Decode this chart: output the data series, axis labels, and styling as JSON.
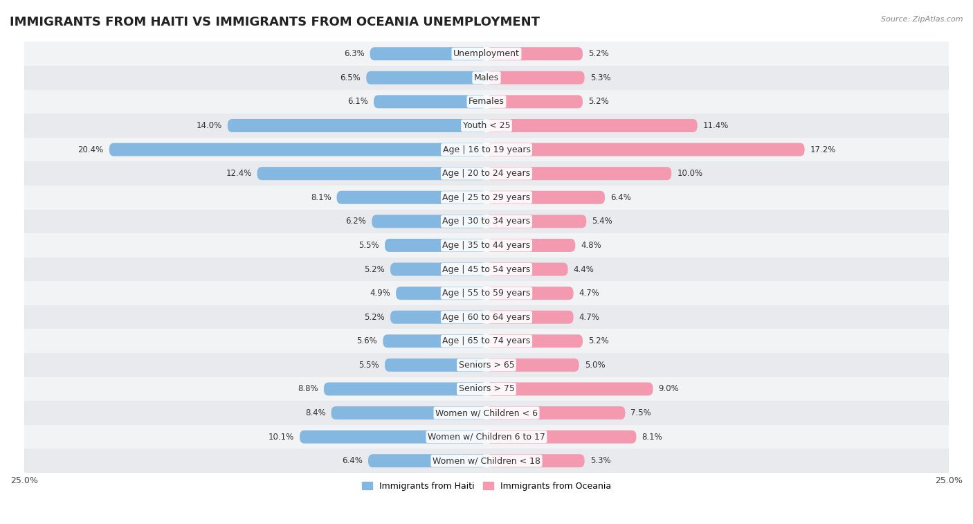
{
  "title": "IMMIGRANTS FROM HAITI VS IMMIGRANTS FROM OCEANIA UNEMPLOYMENT",
  "source": "Source: ZipAtlas.com",
  "categories": [
    "Unemployment",
    "Males",
    "Females",
    "Youth < 25",
    "Age | 16 to 19 years",
    "Age | 20 to 24 years",
    "Age | 25 to 29 years",
    "Age | 30 to 34 years",
    "Age | 35 to 44 years",
    "Age | 45 to 54 years",
    "Age | 55 to 59 years",
    "Age | 60 to 64 years",
    "Age | 65 to 74 years",
    "Seniors > 65",
    "Seniors > 75",
    "Women w/ Children < 6",
    "Women w/ Children 6 to 17",
    "Women w/ Children < 18"
  ],
  "haiti_values": [
    6.3,
    6.5,
    6.1,
    14.0,
    20.4,
    12.4,
    8.1,
    6.2,
    5.5,
    5.2,
    4.9,
    5.2,
    5.6,
    5.5,
    8.8,
    8.4,
    10.1,
    6.4
  ],
  "oceania_values": [
    5.2,
    5.3,
    5.2,
    11.4,
    17.2,
    10.0,
    6.4,
    5.4,
    4.8,
    4.4,
    4.7,
    4.7,
    5.2,
    5.0,
    9.0,
    7.5,
    8.1,
    5.3
  ],
  "haiti_color": "#85b8e0",
  "oceania_color": "#f49ab0",
  "haiti_label": "Immigrants from Haiti",
  "oceania_label": "Immigrants from Oceania",
  "xlim": 25.0,
  "bar_height": 0.55,
  "row_colors": [
    "#e8eaed",
    "#f2f3f5"
  ],
  "title_fontsize": 13,
  "label_fontsize": 9,
  "value_fontsize": 8.5
}
